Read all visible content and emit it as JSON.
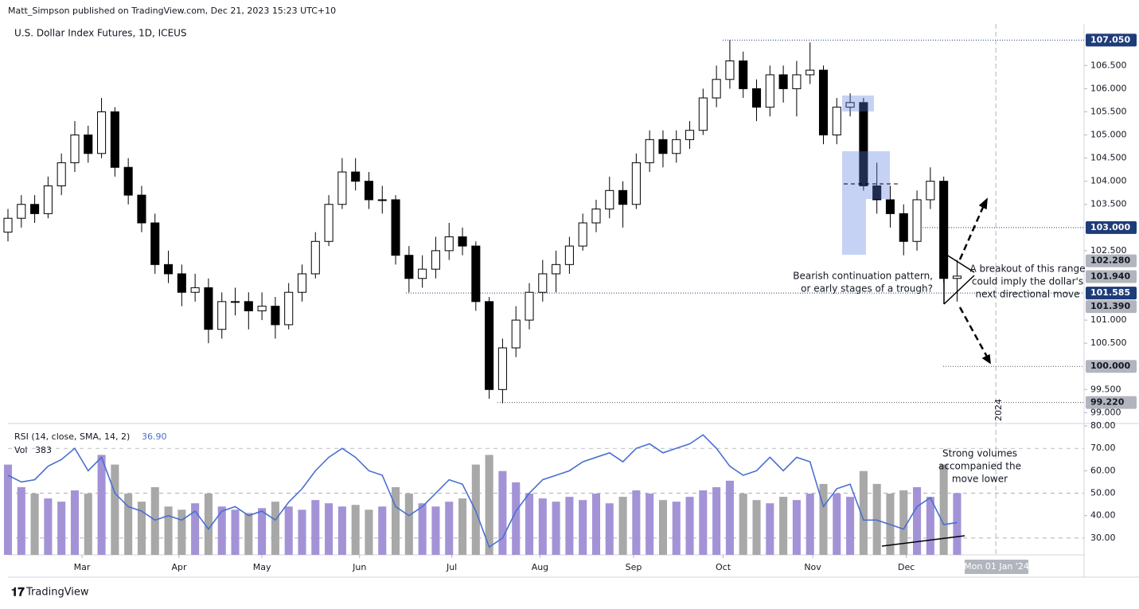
{
  "header": {
    "author_line": "Matt_Simpson published on TradingView.com, Dec 21, 2023 15:23 UTC+10",
    "brand": "TradingView"
  },
  "chart_data": {
    "type": "candlestick",
    "title": "U.S. Dollar Index Futures, 1D, ICEUS",
    "x": [
      0,
      1,
      2,
      3,
      4,
      5,
      6,
      7,
      8,
      9,
      10,
      11,
      12,
      13,
      14,
      15,
      16,
      17,
      18,
      19,
      20,
      21,
      22,
      23,
      24,
      25,
      26,
      27,
      28,
      29,
      30,
      31,
      32,
      33,
      34,
      35,
      36,
      37,
      38,
      39,
      40,
      41,
      42,
      43,
      44,
      45,
      46,
      47,
      48,
      49,
      50,
      51,
      52,
      53,
      54,
      55,
      56,
      57,
      58,
      59,
      60,
      61,
      62,
      63,
      64,
      65,
      66,
      67,
      68,
      69,
      70,
      71
    ],
    "xlim": [
      0,
      80.5
    ],
    "xticks": [
      {
        "value": 5.54,
        "label": "Mar"
      },
      {
        "value": 12.8,
        "label": "Apr"
      },
      {
        "value": 19.0,
        "label": "May"
      },
      {
        "value": 26.3,
        "label": "Jun"
      },
      {
        "value": 33.2,
        "label": "Jul"
      },
      {
        "value": 39.8,
        "label": "Aug"
      },
      {
        "value": 46.8,
        "label": "Sep"
      },
      {
        "value": 53.5,
        "label": "Oct"
      },
      {
        "value": 60.2,
        "label": "Nov"
      },
      {
        "value": 67.2,
        "label": "Dec"
      }
    ],
    "year_marker": {
      "value": 73.9,
      "label": "2024"
    },
    "crosshair_label": "Mon 01 Jan '24",
    "candles": {
      "open": [
        102.9,
        103.2,
        103.5,
        103.3,
        103.9,
        104.4,
        105.0,
        104.6,
        105.5,
        104.3,
        103.7,
        103.1,
        102.2,
        102.0,
        101.6,
        101.7,
        100.8,
        101.4,
        101.4,
        101.2,
        101.3,
        100.9,
        101.6,
        102.0,
        102.7,
        103.5,
        104.2,
        104.0,
        103.6,
        103.6,
        102.4,
        101.9,
        102.1,
        102.5,
        102.8,
        102.6,
        101.4,
        99.5,
        100.4,
        101.0,
        101.6,
        102.0,
        102.2,
        102.6,
        103.1,
        103.4,
        103.8,
        103.5,
        104.4,
        104.9,
        104.6,
        104.9,
        105.1,
        105.8,
        106.2,
        106.6,
        106.0,
        105.6,
        106.3,
        106.0,
        106.3,
        106.4,
        105.0,
        105.6,
        105.7,
        103.9,
        103.6,
        103.3,
        102.7,
        103.6,
        104.0,
        101.9
      ],
      "high": [
        103.4,
        103.7,
        103.7,
        104.1,
        104.6,
        105.3,
        105.2,
        105.8,
        105.6,
        104.5,
        103.9,
        103.3,
        102.5,
        102.2,
        102.0,
        101.9,
        101.6,
        101.7,
        101.6,
        101.6,
        101.5,
        101.8,
        102.2,
        102.9,
        103.7,
        104.5,
        104.5,
        104.2,
        103.9,
        103.7,
        102.6,
        102.4,
        102.8,
        103.1,
        103.0,
        102.7,
        101.5,
        100.6,
        101.3,
        101.8,
        102.3,
        102.5,
        102.8,
        103.3,
        103.6,
        104.1,
        104.0,
        104.6,
        105.1,
        105.1,
        105.1,
        105.3,
        106.0,
        106.5,
        107.05,
        106.8,
        106.2,
        106.5,
        106.5,
        106.6,
        107.0,
        106.5,
        105.8,
        105.9,
        105.8,
        104.4,
        103.9,
        103.5,
        103.8,
        104.3,
        104.1,
        102.3
      ],
      "low": [
        102.7,
        103.0,
        103.1,
        103.2,
        103.7,
        104.2,
        104.4,
        104.5,
        104.1,
        103.5,
        102.9,
        102.0,
        101.8,
        101.3,
        101.4,
        100.5,
        100.6,
        101.1,
        100.8,
        101.0,
        100.6,
        100.8,
        101.4,
        101.9,
        102.6,
        103.4,
        103.8,
        103.4,
        103.3,
        102.2,
        101.6,
        101.7,
        101.9,
        102.3,
        102.4,
        101.2,
        99.3,
        99.2,
        100.2,
        100.8,
        101.4,
        101.6,
        102.0,
        102.5,
        102.9,
        103.2,
        103.0,
        103.4,
        104.2,
        104.3,
        104.4,
        104.7,
        105.0,
        105.6,
        106.0,
        105.8,
        105.3,
        105.4,
        105.7,
        105.4,
        106.1,
        104.8,
        104.8,
        105.4,
        103.8,
        103.3,
        103.0,
        102.4,
        102.5,
        103.4,
        101.8,
        101.4
      ],
      "close": [
        103.2,
        103.5,
        103.3,
        103.9,
        104.4,
        105.0,
        104.6,
        105.5,
        104.3,
        103.7,
        103.1,
        102.2,
        102.0,
        101.6,
        101.7,
        100.8,
        101.4,
        101.4,
        101.2,
        101.3,
        100.9,
        101.6,
        102.0,
        102.7,
        103.5,
        104.2,
        104.0,
        103.6,
        103.6,
        102.4,
        101.9,
        102.1,
        102.5,
        102.8,
        102.6,
        101.4,
        99.5,
        100.4,
        101.0,
        101.6,
        102.0,
        102.2,
        102.6,
        103.1,
        103.4,
        103.8,
        103.5,
        104.4,
        104.9,
        104.6,
        104.9,
        105.1,
        105.8,
        106.2,
        106.6,
        106.0,
        105.6,
        106.3,
        106.0,
        106.3,
        106.4,
        105.0,
        105.6,
        105.7,
        103.9,
        103.6,
        103.3,
        102.7,
        103.6,
        104.0,
        101.9,
        101.95
      ],
      "up_color": "#ffffff",
      "down_color": "#000000",
      "border_color": "#000000"
    },
    "ylim": [
      98.8,
      107.4
    ],
    "yticks": [
      {
        "value": 106.5,
        "label": "106.500"
      },
      {
        "value": 106,
        "label": "106.000"
      },
      {
        "value": 105.5,
        "label": "105.500"
      },
      {
        "value": 105,
        "label": "105.000"
      },
      {
        "value": 104.5,
        "label": "104.500"
      },
      {
        "value": 104,
        "label": "104.000"
      },
      {
        "value": 103.5,
        "label": "103.500"
      },
      {
        "value": 102.5,
        "label": "102.500"
      },
      {
        "value": 101,
        "label": "101.000"
      },
      {
        "value": 100.5,
        "label": "100.500"
      },
      {
        "value": 99.5,
        "label": "99.500"
      },
      {
        "value": 99,
        "label": "99.000"
      }
    ],
    "levels": [
      {
        "value": 107.05,
        "label": "107.050",
        "color": "#1e3c78"
      },
      {
        "value": 103,
        "label": "103.000",
        "color": "#1e3c78"
      },
      {
        "value": 102.28,
        "label": "102.280",
        "color": "#b2b5be"
      },
      {
        "value": 101.94,
        "label": "101.940",
        "color": "#b2b5be"
      },
      {
        "value": 101.585,
        "label": "101.585",
        "color": "#1e3c78"
      },
      {
        "value": 101.39,
        "label": "101.390",
        "color": "#b2b5be"
      },
      {
        "value": 100,
        "label": "100.000",
        "color": "#b2b5be"
      },
      {
        "value": 99.22,
        "label": "99.220",
        "color": "#b2b5be"
      }
    ],
    "annotations": {
      "pattern": [
        "Bearish continuation pattern,",
        "or early stages of a trough?"
      ],
      "breakout": [
        "A breakout of this range",
        "could imply the dollar's",
        "next directional move"
      ],
      "volumes": [
        "Strong volumes",
        "accompanied the",
        "move lower"
      ]
    },
    "rsi": {
      "label": "RSI (14, close, SMA, 14, 2)",
      "value_label": "36.90",
      "color": "#4a6fd1",
      "values": [
        58,
        55,
        56,
        62,
        65,
        70,
        60,
        66,
        50,
        44,
        42,
        38,
        40,
        38,
        42,
        34,
        42,
        44,
        40,
        42,
        38,
        46,
        52,
        60,
        66,
        70,
        66,
        60,
        58,
        44,
        40,
        44,
        50,
        56,
        54,
        42,
        26,
        30,
        42,
        50,
        56,
        58,
        60,
        64,
        66,
        68,
        64,
        70,
        72,
        68,
        70,
        72,
        76,
        70,
        62,
        58,
        60,
        66,
        60,
        66,
        64,
        44,
        52,
        54,
        38,
        38,
        36,
        34,
        44,
        48,
        36,
        36.9
      ],
      "ylim": [
        22.5,
        80
      ],
      "yticks": [
        {
          "value": 80,
          "label": "80.00"
        },
        {
          "value": 70,
          "label": "70.00"
        },
        {
          "value": 60,
          "label": "60.00"
        },
        {
          "value": 50,
          "label": "50.00"
        },
        {
          "value": 40,
          "label": "40.00"
        },
        {
          "value": 30,
          "label": "30.00"
        }
      ]
    },
    "volume": {
      "label": "Vol",
      "up_color": "#a393d6",
      "down_color": "#a8a8a8",
      "vlim": [
        0,
        800
      ],
      "values": [
        560,
        420,
        380,
        350,
        330,
        400,
        380,
        620,
        560,
        380,
        330,
        420,
        300,
        280,
        320,
        380,
        300,
        280,
        260,
        290,
        330,
        300,
        280,
        340,
        320,
        300,
        310,
        280,
        300,
        420,
        380,
        320,
        300,
        330,
        350,
        560,
        620,
        520,
        450,
        380,
        350,
        330,
        360,
        340,
        380,
        320,
        360,
        400,
        380,
        340,
        330,
        360,
        400,
        420,
        460,
        380,
        340,
        320,
        360,
        340,
        380,
        440,
        380,
        360,
        520,
        440,
        380,
        400,
        420,
        360,
        560,
        383
      ]
    }
  }
}
